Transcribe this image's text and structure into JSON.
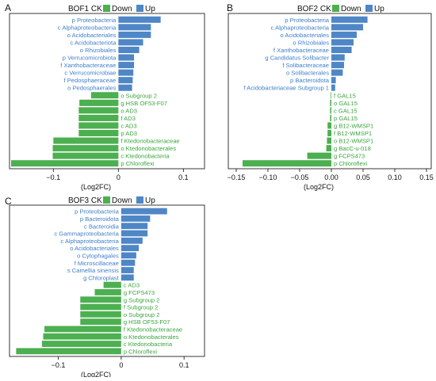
{
  "colors": {
    "down": "#4caf50",
    "up": "#4f86c6",
    "down_text": "#3aa63e",
    "up_text": "#3f7fcb",
    "axis": "#222222"
  },
  "chart_data": [
    {
      "type": "bar",
      "panel_label": "A",
      "title": "BOF1 CK",
      "legend": [
        "Down",
        "Up"
      ],
      "xlabel": "(Log2FC)",
      "xlim": [
        -0.165,
        0.13
      ],
      "xticks": [
        -0.1,
        0,
        0.1
      ],
      "xtick_labels": [
        "−0.1",
        "0",
        "0.1"
      ],
      "categories": [
        "p Proteobacteria",
        "c Alphaproteobacteria",
        "o Acidobacteriales",
        "c Acidobacteriota",
        "o Rhizobiales",
        "p Verrucomicrobiota",
        "f Xanthobacteraceae",
        "c Verrucomicrobiae",
        "f Pedosphaeraceae",
        "o Pedosphaerales",
        "o Subgroup 2",
        "g HSB OF53-F07",
        "o AD3",
        "f AD3",
        "c AD3",
        "p AD3",
        "f Ktedonobacteraceae",
        "o Ktedonobacterales",
        "c Ktedonobacteria",
        "p Chloroflexi"
      ],
      "values": [
        0.065,
        0.05,
        0.05,
        0.038,
        0.032,
        0.024,
        0.024,
        0.023,
        0.022,
        0.021,
        -0.042,
        -0.06,
        -0.061,
        -0.061,
        -0.061,
        -0.061,
        -0.1,
        -0.101,
        -0.101,
        -0.165
      ]
    },
    {
      "type": "bar",
      "panel_label": "B",
      "title": "BOF2 CK",
      "legend": [
        "Down",
        "Up"
      ],
      "xlabel": "(Log2FC)",
      "xlim": [
        -0.16,
        0.155
      ],
      "xticks": [
        -0.15,
        -0.1,
        -0.05,
        0,
        0.05,
        0.1,
        0.15
      ],
      "xtick_labels": [
        "−0.15",
        "−0.10",
        "−0.05",
        "0.00",
        "0.05",
        "0.10",
        "0.15"
      ],
      "categories": [
        "p Proteobacteria",
        "c Alphaproteobacteria",
        "o Acidobacteriales",
        "o Rhizobiales",
        "f Xanthobacteraceae",
        "g Candidatus Solibacter",
        "f Solibacteraceae",
        "o Solibacterales",
        "p Bacteroidota",
        "f Acidobacteriaceae Subgroup 1",
        "f GAL15",
        "o GAL15",
        "c GAL15",
        "p GAL15",
        "g B12-WMSP1",
        "f B12-WMSP1",
        "o B12-WMSP1",
        "g BacC-u-018",
        "g FCPS473",
        "p Chloroflexi"
      ],
      "values": [
        0.057,
        0.05,
        0.04,
        0.035,
        0.032,
        0.021,
        0.02,
        0.018,
        0.007,
        0.006,
        -0.001,
        -0.002,
        -0.002,
        -0.002,
        -0.006,
        -0.006,
        -0.007,
        -0.008,
        -0.038,
        -0.14
      ]
    },
    {
      "type": "bar",
      "panel_label": "C",
      "title": "BOF3 CK",
      "legend": [
        "Down",
        "Up"
      ],
      "xlabel": "(Log2FC)",
      "xlim": [
        -0.175,
        0.13
      ],
      "xticks": [
        -0.1,
        0,
        0.1
      ],
      "xtick_labels": [
        "−0.1",
        "0",
        "0.1"
      ],
      "categories": [
        "p Proteobacteria",
        "p Bacteroidota",
        "c Bacteroidia",
        "c Gammaproteobacteria",
        "c Alphaproteobacteria",
        "o Acidobacteriales",
        "o Cytophagales",
        "f Microscillaceae",
        "s Camellia sinensis",
        "g Chloroplast",
        "c AD3",
        "g FCPS473",
        "g Subgroup 2",
        "f Subgroup 2",
        "o Subgroup 2",
        "g HSB OF53-F07",
        "f Ktedonobacteraceae",
        "o Ktedonobacterales",
        "c Ktedonobacteria",
        "p Chloroflexi"
      ],
      "values": [
        0.073,
        0.046,
        0.042,
        0.042,
        0.034,
        0.028,
        0.024,
        0.022,
        0.02,
        0.02,
        -0.028,
        -0.042,
        -0.065,
        -0.065,
        -0.065,
        -0.065,
        -0.122,
        -0.124,
        -0.126,
        -0.167
      ]
    }
  ]
}
